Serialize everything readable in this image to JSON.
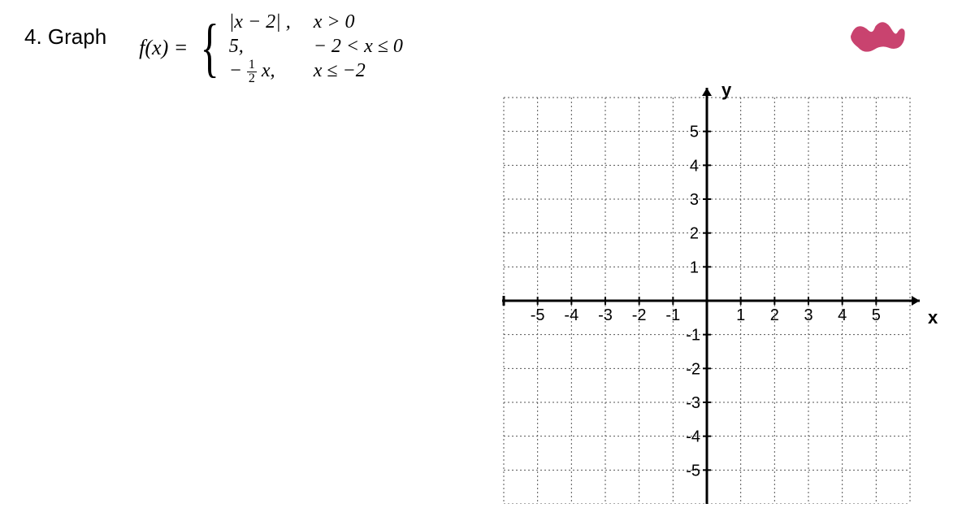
{
  "problem": {
    "number_label": "4.   Graph",
    "fx_label": "f(x) =",
    "pieces": [
      {
        "def": "|x − 2|  ,",
        "cond": "x > 0"
      },
      {
        "def": "5,",
        "cond": "− 2 < x ≤ 0"
      },
      {
        "def_prefix": "−",
        "def_frac_num": "1",
        "def_frac_den": "2",
        "def_suffix": "x,",
        "cond": "x ≤ −2"
      }
    ]
  },
  "scribble": {
    "color": "#c9436f",
    "width": 70,
    "height": 40
  },
  "graph": {
    "size": 500,
    "cells": 12,
    "axis_label_x": "x",
    "axis_label_y": "y",
    "tick_labels_x_neg": [
      "-5",
      "-4",
      "-3",
      "-2",
      "-1"
    ],
    "tick_labels_x_pos": [
      "1",
      "2",
      "3",
      "4",
      "5"
    ],
    "tick_labels_y_pos": [
      "1",
      "2",
      "3",
      "4",
      "5"
    ],
    "tick_labels_y_neg": [
      "-1",
      "-2",
      "-3",
      "-4",
      "-5"
    ],
    "grid_color": "#555555",
    "grid_width": 1,
    "axis_color": "#000000",
    "axis_width": 3,
    "tick_font_size": 20,
    "tick_font_family": "Arial",
    "label_font_size": 22,
    "background": "#ffffff"
  }
}
